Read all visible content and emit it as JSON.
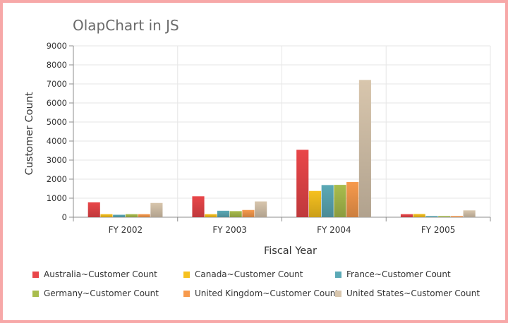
{
  "chart_data": {
    "type": "bar",
    "title": "OlapChart in JS",
    "xlabel": "Fiscal Year",
    "ylabel": "Customer Count",
    "ylim": [
      0,
      9000
    ],
    "ytick_step": 1000,
    "grid": true,
    "legend_position": "bottom",
    "categories": [
      "FY 2002",
      "FY 2003",
      "FY 2004",
      "FY 2005"
    ],
    "series": [
      {
        "name": "Australia~Customer Count",
        "color": "#e94649",
        "values": [
          780,
          1100,
          3540,
          160
        ]
      },
      {
        "name": "Canada~Customer Count",
        "color": "#f6c11f",
        "values": [
          160,
          160,
          1380,
          170
        ]
      },
      {
        "name": "France~Customer Count",
        "color": "#5ba9b6",
        "values": [
          130,
          340,
          1690,
          60
        ]
      },
      {
        "name": "Germany~Customer Count",
        "color": "#a9bd4d",
        "values": [
          160,
          320,
          1700,
          60
        ]
      },
      {
        "name": "United Kingdom~Customer Count",
        "color": "#f79a4d",
        "values": [
          160,
          380,
          1850,
          60
        ]
      },
      {
        "name": "United States~Customer Count",
        "color": "#d8c6ad",
        "values": [
          750,
          830,
          7210,
          360
        ]
      }
    ]
  }
}
